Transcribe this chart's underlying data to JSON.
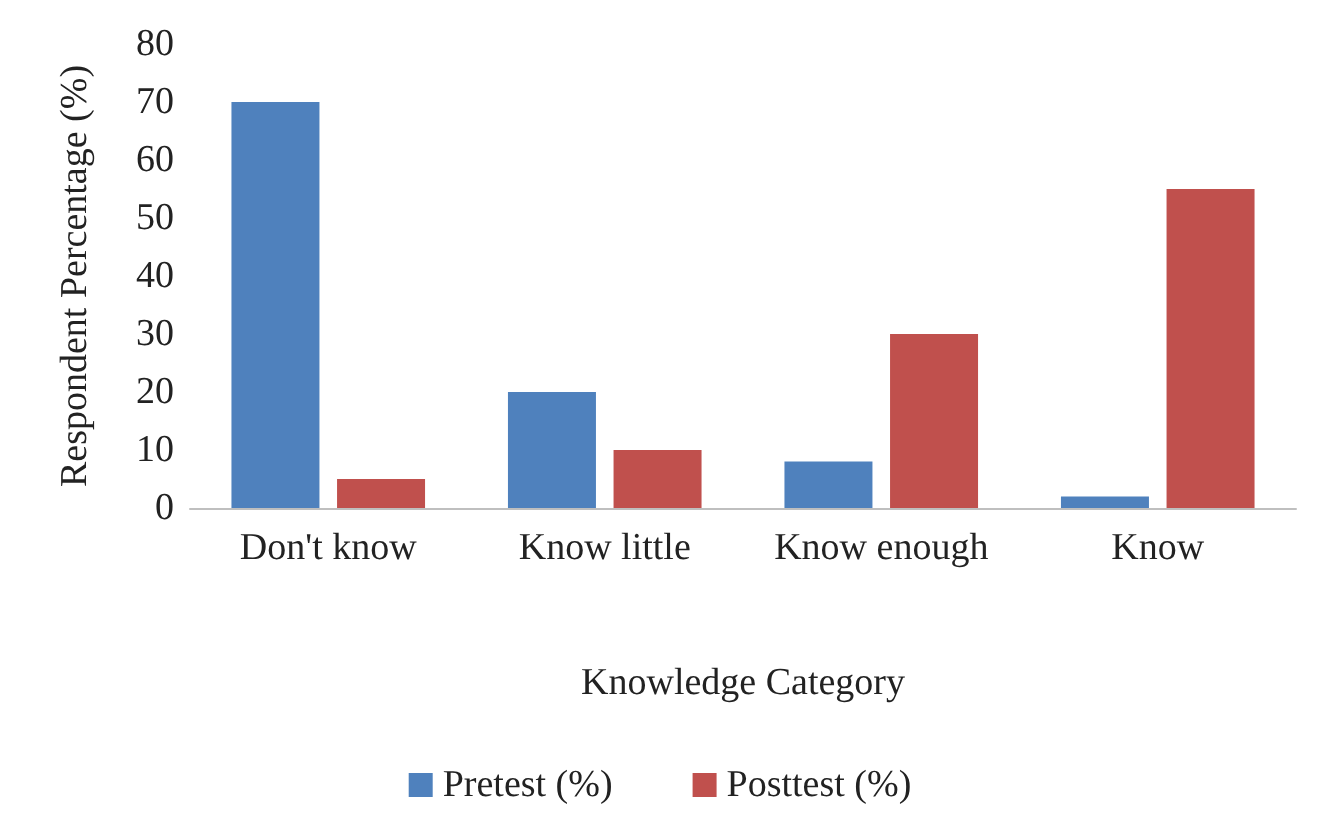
{
  "chart_data": {
    "type": "bar",
    "xlabel": "Knowledge Category",
    "ylabel": "Respondent Percentage (%)",
    "categories": [
      "Don't know",
      "Know little",
      "Know enough",
      "Know"
    ],
    "series": [
      {
        "name": "Pretest (%)",
        "color": "#4f81bd",
        "values": [
          70,
          20,
          8,
          2
        ]
      },
      {
        "name": "Posttest (%)",
        "color": "#c0504d",
        "values": [
          5,
          10,
          30,
          55
        ]
      }
    ],
    "ylim": [
      0,
      80
    ],
    "yticks": [
      0,
      10,
      20,
      30,
      40,
      50,
      60,
      70,
      80
    ],
    "grid": false,
    "legend": "bottom"
  }
}
